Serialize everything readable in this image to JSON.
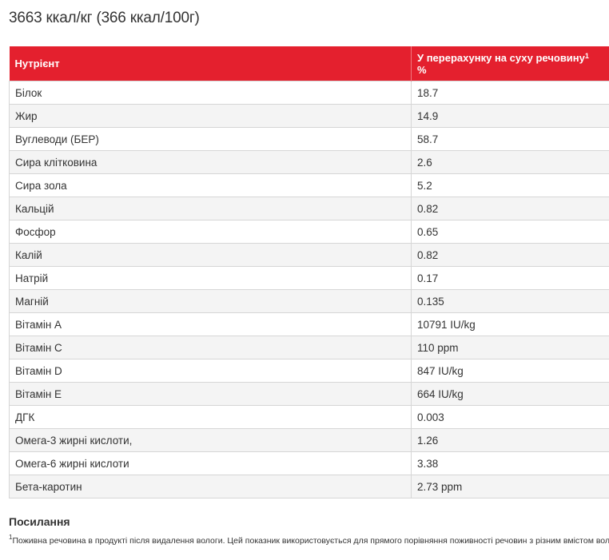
{
  "energy_title": "3663 ккал/кг (366 ккал/100г)",
  "table": {
    "header_nutrient": "Нутрієнт",
    "header_value": "У перерахунку на суху речовину",
    "header_value_sup": "1",
    "header_value_unit": "%",
    "rows": [
      {
        "name": "Білок",
        "value": "18.7"
      },
      {
        "name": "Жир",
        "value": "14.9"
      },
      {
        "name": "Вуглеводи (БЕР)",
        "value": "58.7"
      },
      {
        "name": "Сира клітковина",
        "value": "2.6"
      },
      {
        "name": "Сира зола",
        "value": "5.2"
      },
      {
        "name": "Кальцій",
        "value": "0.82"
      },
      {
        "name": "Фосфор",
        "value": "0.65"
      },
      {
        "name": "Калій",
        "value": "0.82"
      },
      {
        "name": "Натрій",
        "value": "0.17"
      },
      {
        "name": "Магній",
        "value": "0.135"
      },
      {
        "name": "Вітамін A",
        "value": "10791 IU/kg"
      },
      {
        "name": "Вітамін C",
        "value": "110 ppm"
      },
      {
        "name": "Вітамін D",
        "value": "847 IU/kg"
      },
      {
        "name": "Вітамін E",
        "value": "664 IU/kg"
      },
      {
        "name": "ДГК",
        "value": "0.003"
      },
      {
        "name": "Омега-3 жирні кислоти,",
        "value": "1.26"
      },
      {
        "name": "Омега-6 жирні кислоти",
        "value": "3.38"
      },
      {
        "name": "Бета-каротин",
        "value": "2.73 ppm"
      }
    ]
  },
  "references": {
    "title": "Посилання",
    "footnote_marker": "1",
    "footnote_text": "Поживна речовина в продукті після видалення вологи. Цей показник використовується для прямого порівняння поживності речовин з різним вмістом вологи."
  },
  "colors": {
    "header_bg": "#e4202e",
    "row_alt_bg": "#f4f4f4",
    "border": "#d6d6d6"
  }
}
